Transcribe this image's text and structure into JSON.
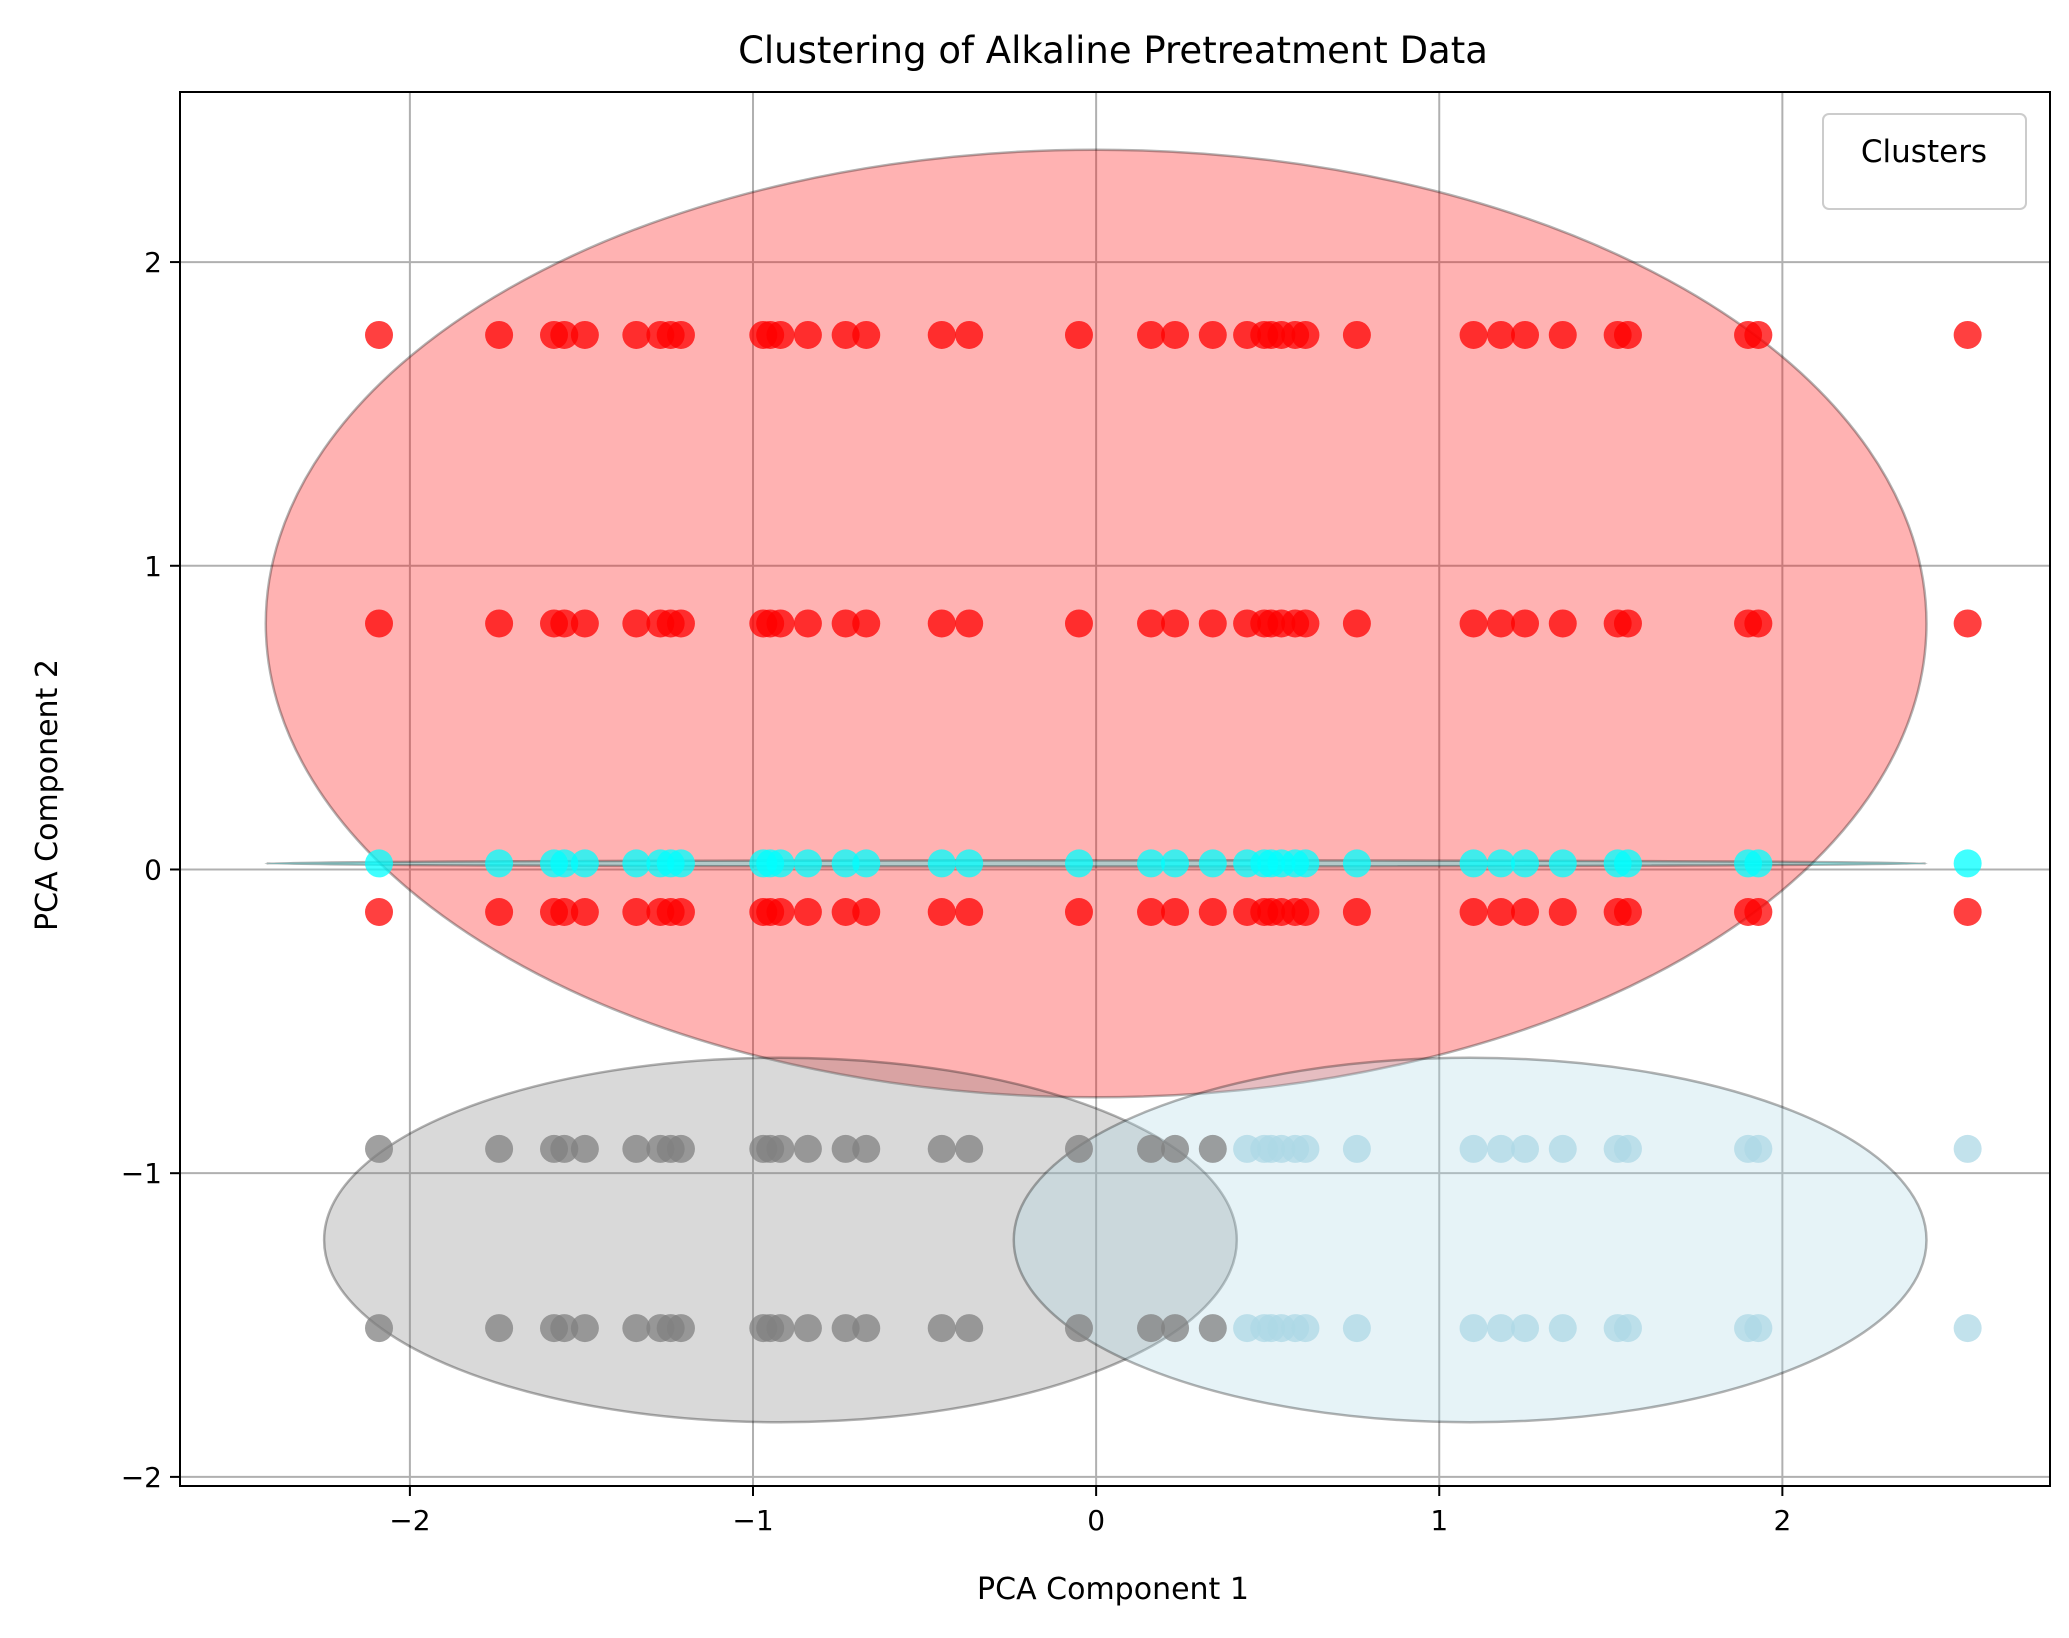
{
  "chart_data": {
    "type": "scatter",
    "title": "Clustering of Alkaline Pretreatment Data",
    "xlabel": "PCA Component 1",
    "ylabel": "PCA Component 2",
    "xlim": [
      -2.67,
      2.78
    ],
    "ylim": [
      -2.03,
      2.56
    ],
    "xticks": [
      -2,
      -1,
      0,
      1,
      2
    ],
    "yticks": [
      -2,
      -1,
      0,
      1,
      2
    ],
    "xtick_labels": [
      "−2",
      "−1",
      "0",
      "1",
      "2"
    ],
    "ytick_labels": [
      "−2",
      "−1",
      "0",
      "1",
      "2"
    ],
    "grid": true,
    "legend": {
      "title": "Clusters",
      "placement": "top-right",
      "entries": []
    },
    "x_positions": [
      -2.09,
      -1.74,
      -1.58,
      -1.55,
      -1.49,
      -1.34,
      -1.27,
      -1.24,
      -1.21,
      -0.97,
      -0.95,
      -0.92,
      -0.84,
      -0.73,
      -0.67,
      -0.45,
      -0.37,
      -0.05,
      0.16,
      0.23,
      0.34,
      0.44,
      0.49,
      0.51,
      0.54,
      0.58,
      0.61,
      0.76,
      1.1,
      1.18,
      1.25,
      1.36,
      1.52,
      1.55,
      1.9,
      1.93,
      2.54
    ],
    "point_groups": [
      {
        "color": "#ff0000",
        "y": 1.76,
        "x_range": "all"
      },
      {
        "color": "#ff0000",
        "y": 0.81,
        "x_range": "all"
      },
      {
        "color": "#ff0000",
        "y": -0.14,
        "x_range": "all"
      },
      {
        "color": "#00ffff",
        "y": 0.02,
        "x_range": "all"
      },
      {
        "color": "#808080",
        "y": -0.92,
        "x_max": 0.34
      },
      {
        "color": "#808080",
        "y": -1.51,
        "x_max": 0.34
      },
      {
        "color": "#add8e6",
        "y": -0.92,
        "x_min": 0.44
      },
      {
        "color": "#add8e6",
        "y": -1.51,
        "x_min": 0.44
      }
    ],
    "ellipses": [
      {
        "cx": 0.0,
        "cy": 0.81,
        "rx": 2.42,
        "ry": 1.56,
        "fill": "#ff0000"
      },
      {
        "cx": 0.0,
        "cy": 0.02,
        "rx": 2.42,
        "ry": 0.01,
        "fill": "#00ffff"
      },
      {
        "cx": -0.92,
        "cy": -1.22,
        "rx": 1.33,
        "ry": 0.6,
        "fill": "#808080"
      },
      {
        "cx": 1.09,
        "cy": -1.22,
        "rx": 1.33,
        "ry": 0.6,
        "fill": "#add8e6"
      }
    ]
  }
}
